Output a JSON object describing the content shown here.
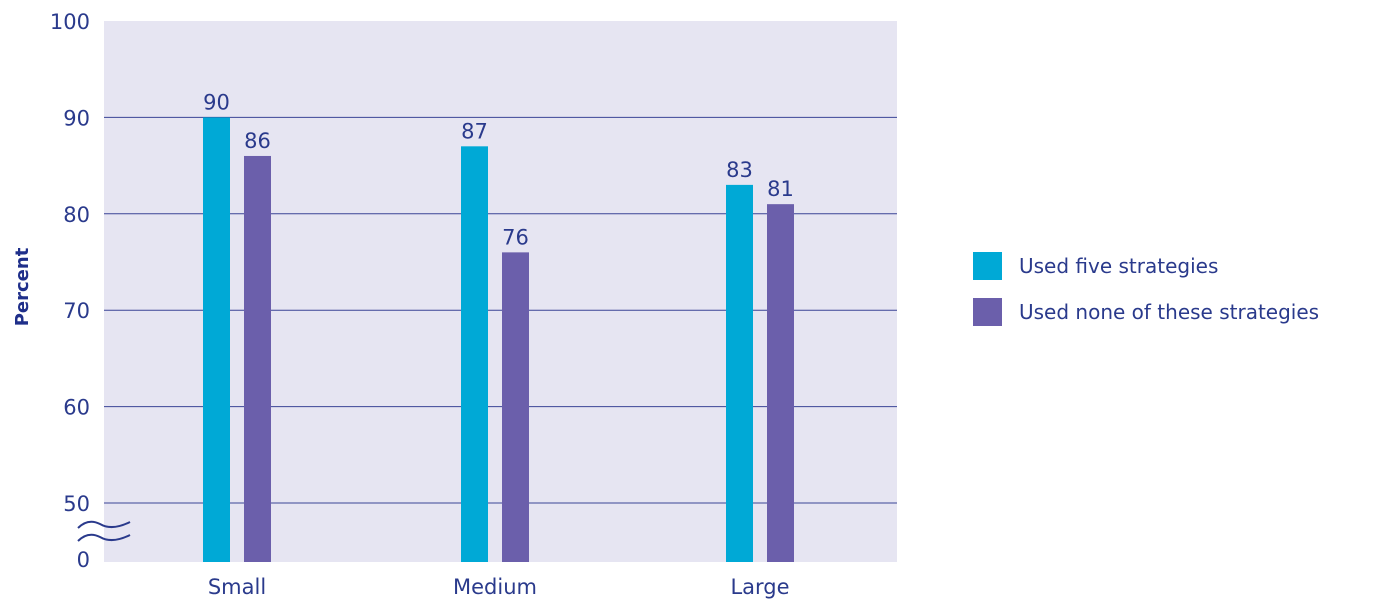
{
  "chart_data": {
    "type": "bar",
    "categories": [
      "Small",
      "Medium",
      "Large"
    ],
    "series": [
      {
        "name": "Used five strategies",
        "color": "#00a9d6",
        "values": [
          90,
          87,
          83
        ]
      },
      {
        "name": "Used none of these strategies",
        "color": "#6b5fab",
        "values": [
          86,
          76,
          81
        ]
      }
    ],
    "title": "",
    "xlabel": "",
    "ylabel": "Percent",
    "ylim": [
      0,
      100
    ],
    "y_ticks": [
      "0",
      "50",
      "60",
      "70",
      "80",
      "90",
      "100"
    ],
    "axis_break": "between 0 and 50",
    "grid": true,
    "legend_position": "right"
  }
}
